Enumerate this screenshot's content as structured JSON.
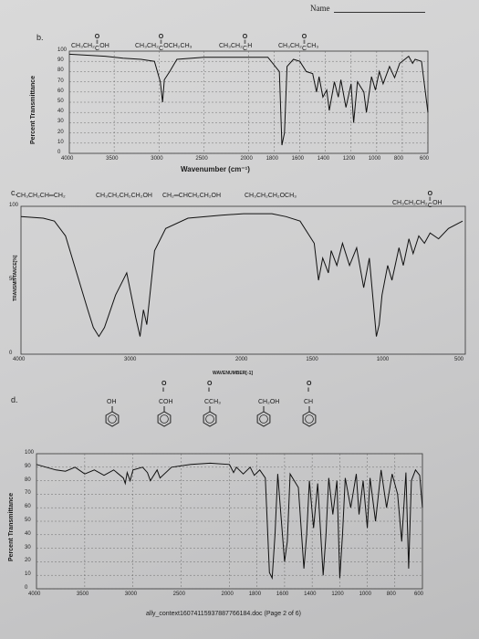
{
  "header": {
    "name_label": "Name"
  },
  "footer": {
    "filename": "ally_context16074115937887766184.doc (Page 2 of 6)"
  },
  "panel_b": {
    "label": "b.",
    "compounds": [
      {
        "prefix": "CH₃CH₂",
        "carbonyl": "C",
        "suffix": "OH"
      },
      {
        "prefix": "CH₃CH₂",
        "carbonyl": "C",
        "suffix": "OCH₂CH₃"
      },
      {
        "prefix": "CH₃CH₂",
        "carbonyl": "C",
        "suffix": "H"
      },
      {
        "prefix": "CH₃CH₂",
        "carbonyl": "C",
        "suffix": "CH₃"
      }
    ],
    "chart_data": {
      "type": "line",
      "ylabel": "Percent Transmittance",
      "xlabel": "Wavenumber (cm⁻¹)",
      "x_ticks": [
        "4000",
        "3500",
        "3000",
        "2500",
        "2000",
        "1800",
        "1600",
        "1400",
        "1200",
        "1000",
        "800",
        "600"
      ],
      "y_ticks": [
        "100",
        "90",
        "80",
        "70",
        "60",
        "50",
        "40",
        "30",
        "20",
        "10",
        "0"
      ],
      "ylim": [
        0,
        100
      ],
      "series": [
        {
          "points": [
            [
              4000,
              97
            ],
            [
              3800,
              96
            ],
            [
              3600,
              95
            ],
            [
              3400,
              93
            ],
            [
              3200,
              92
            ],
            [
              3050,
              90
            ],
            [
              2985,
              70
            ],
            [
              2960,
              50
            ],
            [
              2940,
              72
            ],
            [
              2880,
              80
            ],
            [
              2800,
              92
            ],
            [
              2500,
              94
            ],
            [
              2200,
              94
            ],
            [
              2000,
              94
            ],
            [
              1850,
              94
            ],
            [
              1760,
              80
            ],
            [
              1740,
              8
            ],
            [
              1720,
              20
            ],
            [
              1700,
              85
            ],
            [
              1650,
              92
            ],
            [
              1600,
              90
            ],
            [
              1550,
              80
            ],
            [
              1500,
              78
            ],
            [
              1470,
              60
            ],
            [
              1450,
              75
            ],
            [
              1420,
              55
            ],
            [
              1390,
              62
            ],
            [
              1370,
              42
            ],
            [
              1330,
              70
            ],
            [
              1300,
              55
            ],
            [
              1280,
              72
            ],
            [
              1240,
              45
            ],
            [
              1200,
              68
            ],
            [
              1180,
              30
            ],
            [
              1150,
              70
            ],
            [
              1100,
              60
            ],
            [
              1080,
              40
            ],
            [
              1040,
              75
            ],
            [
              1010,
              62
            ],
            [
              980,
              80
            ],
            [
              950,
              68
            ],
            [
              900,
              85
            ],
            [
              860,
              74
            ],
            [
              820,
              88
            ],
            [
              780,
              92
            ],
            [
              750,
              95
            ],
            [
              720,
              88
            ],
            [
              700,
              92
            ],
            [
              650,
              90
            ],
            [
              600,
              40
            ]
          ]
        }
      ]
    }
  },
  "panel_c": {
    "label": "c.",
    "compounds": [
      "CH₃CH₂CH═CH₂",
      "CH₃CH₂CH₂CH₂OH",
      "CH₂═CHCH₂CH₂OH",
      "CH₃CH₂CH₂OCH₃"
    ],
    "last_compound": {
      "prefix": "CH₃CH₂CH₂",
      "carbonyl": "C",
      "suffix": "OH"
    },
    "chart_data": {
      "type": "line",
      "ylabel": "TRANSMITTANCE[%]",
      "xlabel": "WAVENUMBER[-1]",
      "x_ticks": [
        "4000",
        "3000",
        "2000",
        "1500",
        "1000",
        "500"
      ],
      "y_ticks": [
        "100",
        "50",
        "0"
      ],
      "ylim": [
        0,
        100
      ],
      "series": [
        {
          "points": [
            [
              4000,
              93
            ],
            [
              3800,
              92
            ],
            [
              3700,
              90
            ],
            [
              3600,
              80
            ],
            [
              3500,
              55
            ],
            [
              3400,
              30
            ],
            [
              3350,
              18
            ],
            [
              3300,
              12
            ],
            [
              3250,
              18
            ],
            [
              3150,
              40
            ],
            [
              3050,
              55
            ],
            [
              2970,
              25
            ],
            [
              2930,
              12
            ],
            [
              2900,
              30
            ],
            [
              2870,
              20
            ],
            [
              2800,
              70
            ],
            [
              2700,
              85
            ],
            [
              2500,
              92
            ],
            [
              2200,
              94
            ],
            [
              2000,
              95
            ],
            [
              1800,
              95
            ],
            [
              1700,
              93
            ],
            [
              1600,
              90
            ],
            [
              1500,
              75
            ],
            [
              1470,
              50
            ],
            [
              1440,
              65
            ],
            [
              1400,
              55
            ],
            [
              1380,
              70
            ],
            [
              1340,
              60
            ],
            [
              1300,
              75
            ],
            [
              1250,
              60
            ],
            [
              1200,
              72
            ],
            [
              1150,
              45
            ],
            [
              1110,
              65
            ],
            [
              1060,
              12
            ],
            [
              1040,
              20
            ],
            [
              1020,
              40
            ],
            [
              980,
              60
            ],
            [
              950,
              50
            ],
            [
              900,
              72
            ],
            [
              870,
              60
            ],
            [
              830,
              78
            ],
            [
              800,
              68
            ],
            [
              760,
              80
            ],
            [
              720,
              75
            ],
            [
              680,
              82
            ],
            [
              620,
              78
            ],
            [
              550,
              85
            ],
            [
              450,
              90
            ]
          ]
        }
      ]
    }
  },
  "panel_d": {
    "label": "d.",
    "compounds": [
      {
        "sub": "OH",
        "carbonyl": false
      },
      {
        "sub": "COH",
        "carbonyl": true
      },
      {
        "sub": "CCH₃",
        "carbonyl": true
      },
      {
        "sub": "CH₂OH",
        "carbonyl": false
      },
      {
        "sub": "CH",
        "carbonyl": true
      }
    ],
    "chart_data": {
      "type": "line",
      "ylabel": "Percent Transmittance",
      "x_ticks": [
        "4000",
        "3500",
        "3000",
        "2500",
        "2000",
        "1800",
        "1600",
        "1400",
        "1200",
        "1000",
        "800",
        "600"
      ],
      "y_ticks": [
        "100",
        "90",
        "80",
        "70",
        "60",
        "50",
        "40",
        "30",
        "20",
        "10",
        "0"
      ],
      "ylim": [
        0,
        100
      ],
      "series": [
        {
          "points": [
            [
              4000,
              92
            ],
            [
              3900,
              90
            ],
            [
              3800,
              88
            ],
            [
              3700,
              87
            ],
            [
              3600,
              90
            ],
            [
              3500,
              85
            ],
            [
              3400,
              88
            ],
            [
              3300,
              84
            ],
            [
              3200,
              88
            ],
            [
              3100,
              82
            ],
            [
              3080,
              78
            ],
            [
              3060,
              86
            ],
            [
              3030,
              80
            ],
            [
              3000,
              88
            ],
            [
              2900,
              90
            ],
            [
              2850,
              86
            ],
            [
              2820,
              80
            ],
            [
              2750,
              88
            ],
            [
              2720,
              82
            ],
            [
              2600,
              90
            ],
            [
              2400,
              92
            ],
            [
              2200,
              93
            ],
            [
              2000,
              92
            ],
            [
              1970,
              86
            ],
            [
              1950,
              90
            ],
            [
              1900,
              85
            ],
            [
              1850,
              90
            ],
            [
              1820,
              84
            ],
            [
              1780,
              88
            ],
            [
              1740,
              82
            ],
            [
              1710,
              12
            ],
            [
              1690,
              8
            ],
            [
              1670,
              40
            ],
            [
              1650,
              85
            ],
            [
              1600,
              20
            ],
            [
              1580,
              35
            ],
            [
              1560,
              85
            ],
            [
              1500,
              75
            ],
            [
              1460,
              15
            ],
            [
              1440,
              40
            ],
            [
              1420,
              80
            ],
            [
              1390,
              45
            ],
            [
              1360,
              78
            ],
            [
              1320,
              10
            ],
            [
              1300,
              40
            ],
            [
              1280,
              82
            ],
            [
              1250,
              55
            ],
            [
              1220,
              80
            ],
            [
              1200,
              8
            ],
            [
              1180,
              40
            ],
            [
              1160,
              82
            ],
            [
              1120,
              60
            ],
            [
              1080,
              85
            ],
            [
              1060,
              55
            ],
            [
              1030,
              80
            ],
            [
              1000,
              45
            ],
            [
              980,
              82
            ],
            [
              940,
              50
            ],
            [
              900,
              88
            ],
            [
              860,
              60
            ],
            [
              820,
              85
            ],
            [
              780,
              70
            ],
            [
              750,
              35
            ],
            [
              720,
              86
            ],
            [
              700,
              15
            ],
            [
              680,
              80
            ],
            [
              650,
              88
            ],
            [
              620,
              84
            ],
            [
              600,
              60
            ]
          ]
        }
      ]
    }
  }
}
